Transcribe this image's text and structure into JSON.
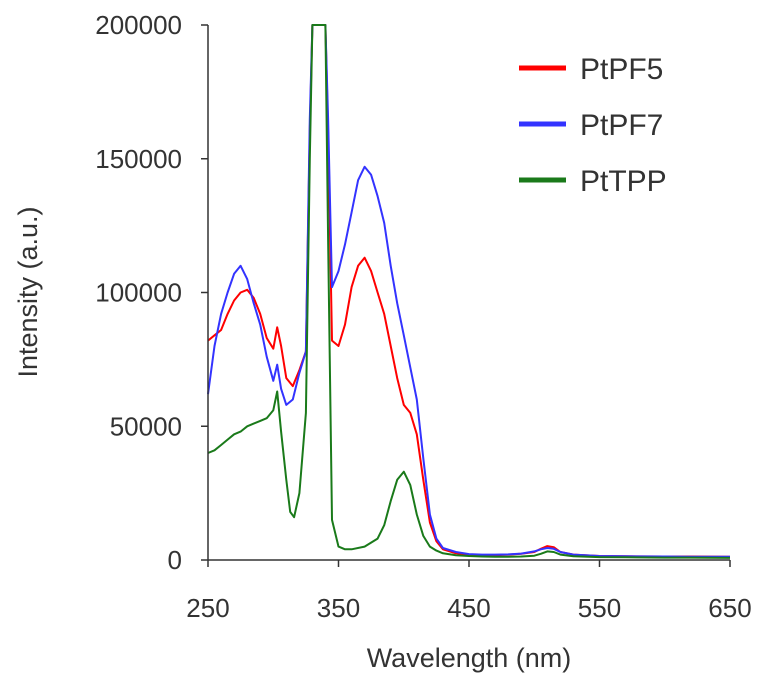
{
  "chart_data": {
    "type": "line",
    "title": "",
    "xlabel": "Wavelength (nm)",
    "ylabel": "Intensity (a.u.)",
    "xlim": [
      250,
      650
    ],
    "ylim": [
      0,
      200000
    ],
    "xticks": [
      250,
      350,
      450,
      550,
      650
    ],
    "yticks": [
      0,
      50000,
      100000,
      150000,
      200000
    ],
    "grid": false,
    "legend_position": "top-right",
    "series": [
      {
        "name": "PtPF5",
        "color": "#ff0000",
        "x": [
          250,
          255,
          260,
          265,
          270,
          275,
          280,
          285,
          290,
          295,
          300,
          303,
          306,
          310,
          315,
          320,
          325,
          328,
          330,
          335,
          340,
          342,
          345,
          350,
          355,
          360,
          365,
          370,
          375,
          380,
          385,
          390,
          395,
          400,
          405,
          410,
          415,
          420,
          425,
          430,
          440,
          450,
          460,
          470,
          480,
          490,
          500,
          505,
          510,
          515,
          520,
          530,
          550,
          570,
          600,
          620,
          650
        ],
        "y": [
          82000,
          84000,
          86000,
          92000,
          97000,
          100000,
          101000,
          98000,
          92000,
          83000,
          79000,
          87000,
          80000,
          68000,
          65000,
          71000,
          78000,
          160000,
          200000,
          200000,
          200000,
          160000,
          82000,
          80000,
          88000,
          102000,
          110000,
          113000,
          108000,
          100000,
          92000,
          80000,
          68000,
          58000,
          55000,
          47000,
          30000,
          14000,
          7000,
          4000,
          2500,
          2000,
          1800,
          1800,
          2000,
          2300,
          3000,
          4200,
          5200,
          4800,
          3000,
          2000,
          1500,
          1400,
          1300,
          1300,
          1200
        ]
      },
      {
        "name": "PtPF7",
        "color": "#3333ff",
        "x": [
          250,
          255,
          260,
          265,
          270,
          275,
          280,
          285,
          290,
          295,
          300,
          303,
          306,
          310,
          315,
          320,
          325,
          328,
          330,
          335,
          340,
          342,
          345,
          350,
          355,
          360,
          365,
          370,
          375,
          380,
          385,
          390,
          395,
          400,
          405,
          410,
          415,
          420,
          425,
          430,
          440,
          450,
          460,
          470,
          480,
          490,
          500,
          505,
          510,
          515,
          520,
          530,
          550,
          570,
          600,
          620,
          650
        ],
        "y": [
          62000,
          80000,
          92000,
          100000,
          107000,
          110000,
          105000,
          96000,
          88000,
          76000,
          67000,
          73000,
          64000,
          58000,
          60000,
          70000,
          78000,
          165000,
          200000,
          200000,
          200000,
          165000,
          102000,
          108000,
          118000,
          130000,
          142000,
          147000,
          144000,
          136000,
          126000,
          110000,
          96000,
          84000,
          72000,
          60000,
          38000,
          17000,
          8000,
          4500,
          3000,
          2200,
          2000,
          2000,
          2100,
          2400,
          3200,
          4000,
          4500,
          4200,
          3000,
          2000,
          1500,
          1400,
          1300,
          1200,
          1200
        ]
      },
      {
        "name": "PtTPP",
        "color": "#1a7a1a",
        "x": [
          250,
          255,
          260,
          265,
          270,
          275,
          280,
          285,
          290,
          295,
          300,
          303,
          306,
          310,
          313,
          316,
          320,
          325,
          328,
          330,
          335,
          340,
          342,
          345,
          350,
          355,
          360,
          370,
          380,
          385,
          390,
          395,
          400,
          405,
          410,
          415,
          420,
          425,
          430,
          440,
          450,
          460,
          470,
          480,
          490,
          500,
          505,
          510,
          515,
          520,
          530,
          550,
          570,
          600,
          620,
          650
        ],
        "y": [
          40000,
          41000,
          43000,
          45000,
          47000,
          48000,
          50000,
          51000,
          52000,
          53000,
          56000,
          63000,
          48000,
          30000,
          18000,
          16000,
          25000,
          55000,
          150000,
          200000,
          200000,
          200000,
          120000,
          15000,
          5000,
          4000,
          4000,
          5000,
          8000,
          13000,
          22000,
          30000,
          33000,
          28000,
          17000,
          9000,
          5000,
          3500,
          2500,
          1800,
          1500,
          1300,
          1200,
          1200,
          1300,
          1600,
          2300,
          3200,
          3000,
          2000,
          1400,
          1100,
          1000,
          900,
          900,
          800
        ]
      }
    ]
  }
}
